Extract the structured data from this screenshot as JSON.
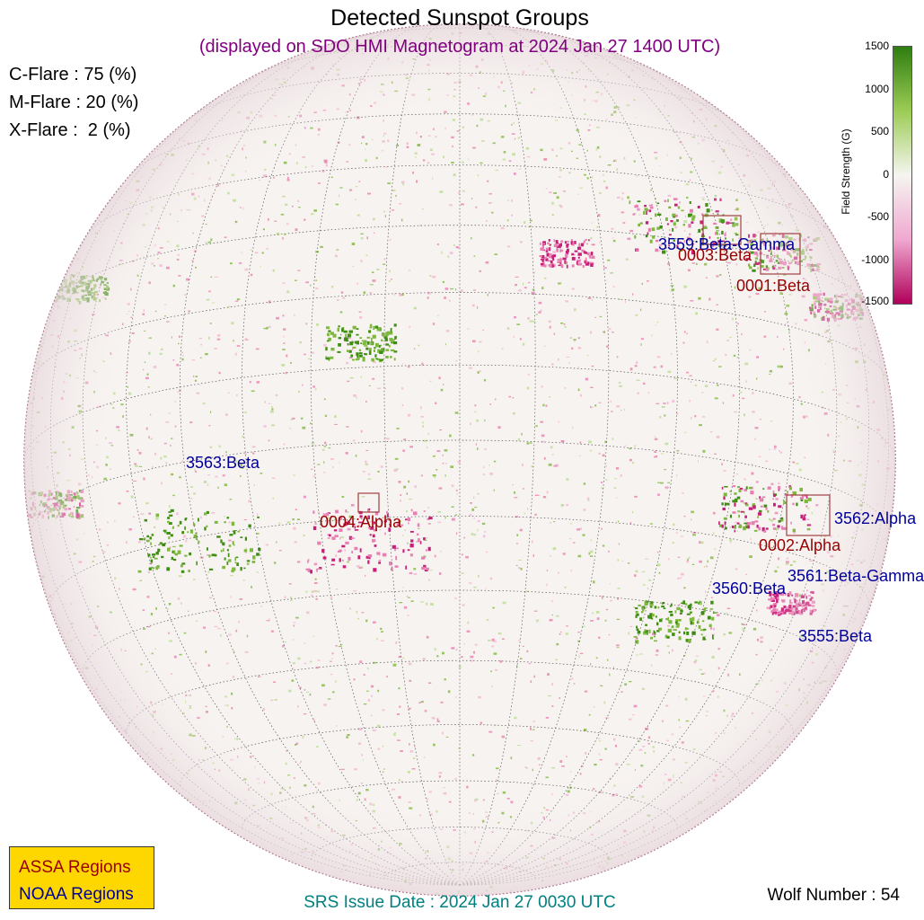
{
  "title": "Detected Sunspot Groups",
  "subtitle": "(displayed on SDO HMI Magnetogram at 2024 Jan 27 1400 UTC)",
  "flares": [
    {
      "label": "C-Flare : 75 (%)"
    },
    {
      "label": "M-Flare : 20 (%)"
    },
    {
      "label": "X-Flare :  2 (%)"
    }
  ],
  "colorbar": {
    "label": "Field Strength (G)",
    "ticks": [
      "1500",
      "1000",
      "500",
      "0",
      "-500",
      "-1000",
      "-1500"
    ],
    "range": [
      -1500,
      1500
    ],
    "positive_color": "#2e7d10",
    "negative_color": "#b0005a"
  },
  "colors": {
    "assa": "#990000",
    "noaa": "#000099",
    "subtitle": "#800080",
    "srs": "#008080",
    "legend_bg": "#ffd700"
  },
  "regions": {
    "assa": [
      {
        "label": "0003:Beta"
      },
      {
        "label": "0001:Beta"
      },
      {
        "label": "0004:Alpha"
      },
      {
        "label": "0002:Alpha"
      }
    ],
    "noaa": [
      {
        "label": "3559:Beta-Gamma"
      },
      {
        "label": "3563:Beta"
      },
      {
        "label": "3562:Alpha"
      },
      {
        "label": "3561:Beta-Gamma"
      },
      {
        "label": "3560:Beta"
      },
      {
        "label": "3555:Beta"
      }
    ]
  },
  "legend": {
    "assa": "ASSA Regions",
    "noaa": "NOAA Regions"
  },
  "srs": "SRS Issue Date : 2024 Jan 27 0030 UTC",
  "wolf": "Wolf Number : 54"
}
